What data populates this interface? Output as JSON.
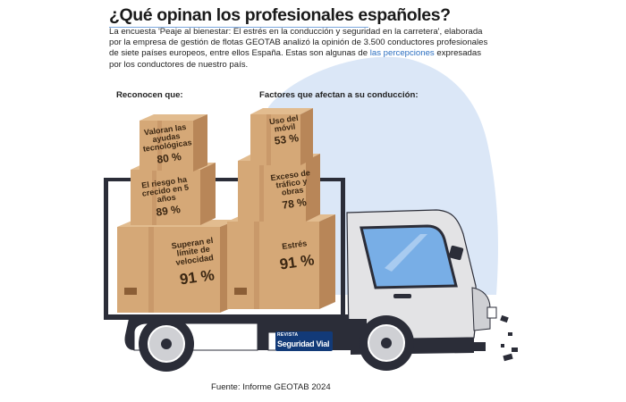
{
  "header": {
    "title": "¿Qué opinan los profesionales españoles?",
    "intro_main": "La encuesta 'Peaje al bienestar: El estrés en la conducción y seguridad en la carretera', elaborada por la empresa de gestión de flotas GEOTAB analizó la opinión de 3.500 conductores profesionales de siete países europeos, entre ellos España. Estas son algunas de ",
    "intro_highlight": "las percepciones",
    "intro_end": " expresadas por los conductores de nuestro país."
  },
  "left_stack": {
    "heading": "Reconocen que:",
    "boxes": [
      {
        "label": "Valoran las ayudas tecnológicas",
        "value": "80 %"
      },
      {
        "label": "El riesgo ha crecido en 5 años",
        "value": "89 %"
      },
      {
        "label": "Superan el límite de velocidad",
        "value": "91 %"
      }
    ]
  },
  "right_stack": {
    "heading": "Factores que afectan a su conducción:",
    "boxes": [
      {
        "label": "Uso del móvil",
        "value": "53 %"
      },
      {
        "label": "Exceso de tráfico y obras",
        "value": "78 %"
      },
      {
        "label": "Estrés",
        "value": "91 %"
      }
    ]
  },
  "logo": {
    "line1": "REVISTA",
    "line2": "Seguridad Vial"
  },
  "footer": {
    "source": "Fuente: Informe GEOTAB 2024"
  },
  "colors": {
    "background_blob": "#dbe7f7",
    "box_front": "#d5a877",
    "box_side": "#b88658",
    "box_top": "#e2bc8f",
    "truck_body": "#e3e3e5",
    "truck_dark": "#2b2d38",
    "window": "#78aee6",
    "logo_bg": "#123a78"
  }
}
